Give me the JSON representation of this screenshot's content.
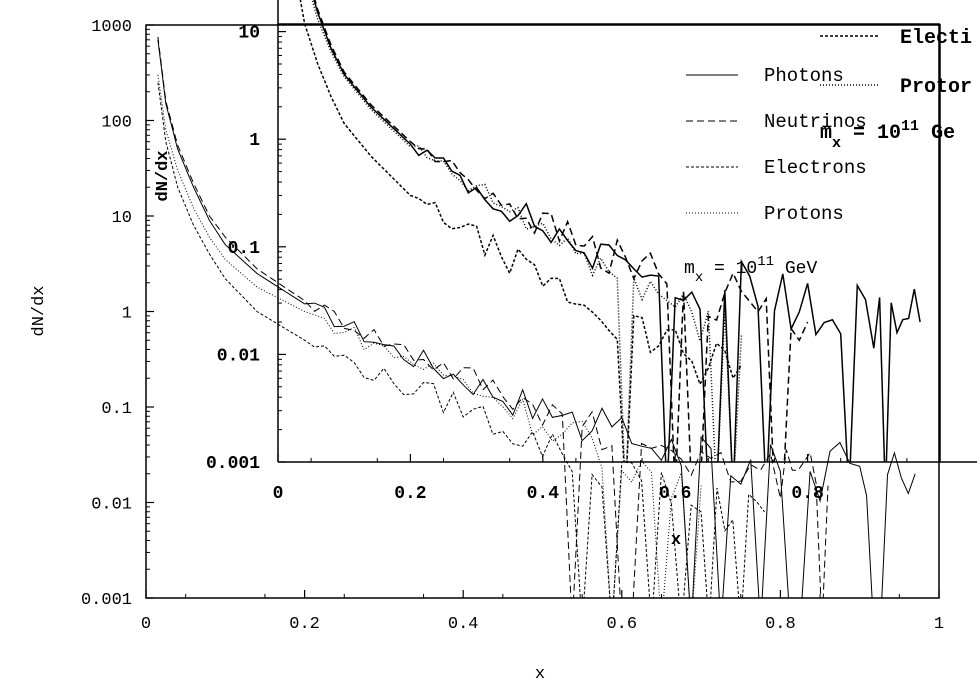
{
  "chart_data": [
    {
      "type": "line",
      "title": "",
      "xlabel": "x",
      "ylabel": "dN/dx",
      "xlim": [
        0,
        1
      ],
      "ylim": [
        0.001,
        1000
      ],
      "yscale": "log",
      "x_ticks": [
        "0",
        "0.2",
        "0.4",
        "0.6",
        "0.8",
        "1"
      ],
      "y_ticks": [
        "0.001",
        "0.01",
        "0.1",
        "1",
        "10",
        "100",
        "1000"
      ],
      "legend_position": "top-right",
      "series": [
        {
          "name": "Photons",
          "style": "solid",
          "x": [
            0.015,
            0.025,
            0.04,
            0.06,
            0.08,
            0.1,
            0.14,
            0.2,
            0.3,
            0.4,
            0.5,
            0.6,
            0.7,
            0.8,
            0.9,
            0.97
          ],
          "y": [
            700,
            150,
            50,
            20,
            9,
            5,
            2.5,
            1.2,
            0.45,
            0.2,
            0.09,
            0.05,
            0.03,
            0.02,
            0.02,
            0.02
          ]
        },
        {
          "name": "Neutrinos",
          "style": "dashed",
          "x": [
            0.015,
            0.025,
            0.04,
            0.06,
            0.08,
            0.1,
            0.14,
            0.2,
            0.3,
            0.4,
            0.5,
            0.6,
            0.7,
            0.8,
            0.86
          ],
          "y": [
            750,
            160,
            55,
            22,
            10,
            6,
            2.8,
            1.3,
            0.5,
            0.22,
            0.1,
            0.05,
            0.03,
            0.02,
            0.015
          ]
        },
        {
          "name": "Electrons",
          "style": "dense-dotted",
          "x": [
            0.015,
            0.025,
            0.04,
            0.06,
            0.08,
            0.1,
            0.14,
            0.2,
            0.3,
            0.4,
            0.5,
            0.6,
            0.7,
            0.78
          ],
          "y": [
            250,
            60,
            20,
            8,
            4,
            2.2,
            1.0,
            0.5,
            0.2,
            0.1,
            0.04,
            0.02,
            0.01,
            0.008
          ]
        },
        {
          "name": "Protons",
          "style": "sparse-dotted",
          "x": [
            0.015,
            0.025,
            0.04,
            0.06,
            0.08,
            0.1,
            0.14,
            0.2,
            0.3,
            0.4,
            0.5,
            0.6,
            0.7
          ],
          "y": [
            300,
            80,
            30,
            12,
            6,
            3.5,
            1.8,
            1.0,
            0.4,
            0.18,
            0.07,
            0.03,
            0.015
          ]
        }
      ]
    },
    {
      "type": "line",
      "title": "",
      "xlabel": "x",
      "ylabel": "dN/dx",
      "xlim": [
        0,
        1
      ],
      "ylim": [
        0.001,
        100
      ],
      "yscale": "log",
      "x_ticks": [
        "0",
        "0.2",
        "0.4",
        "0.6",
        "0.8"
      ],
      "y_ticks": [
        "0.001",
        "0.01",
        "0.1",
        "1",
        "10"
      ],
      "legend_position": "top-right",
      "legend_visible": [
        "Electi",
        "Protor"
      ],
      "annotation": "m_x = 10^11 Ge",
      "series": [
        {
          "name": "",
          "style": "solid",
          "x": [
            0.015,
            0.025,
            0.04,
            0.06,
            0.08,
            0.1,
            0.14,
            0.2,
            0.3,
            0.4,
            0.5,
            0.6,
            0.7,
            0.8,
            0.9,
            0.97
          ],
          "y": [
            400,
            120,
            40,
            15,
            7,
            4,
            2,
            0.9,
            0.35,
            0.15,
            0.07,
            0.05,
            0.04,
            0.03,
            0.02,
            0.02
          ]
        },
        {
          "name": "",
          "style": "dashed",
          "x": [
            0.015,
            0.025,
            0.04,
            0.06,
            0.08,
            0.1,
            0.14,
            0.2,
            0.3,
            0.4,
            0.5,
            0.6,
            0.7,
            0.8
          ],
          "y": [
            420,
            125,
            42,
            16,
            7.5,
            4.2,
            2.1,
            0.95,
            0.38,
            0.16,
            0.08,
            0.05,
            0.03,
            0.02
          ]
        },
        {
          "name": "Electi",
          "style": "dense-dotted",
          "x": [
            0.015,
            0.025,
            0.04,
            0.06,
            0.08,
            0.1,
            0.14,
            0.2,
            0.3,
            0.4,
            0.5,
            0.6,
            0.7
          ],
          "y": [
            150,
            40,
            12,
            5,
            2.5,
            1.4,
            0.7,
            0.3,
            0.12,
            0.05,
            0.02,
            0.01,
            0.008
          ]
        },
        {
          "name": "Protor",
          "style": "sparse-dotted",
          "x": [
            0.015,
            0.025,
            0.04,
            0.06,
            0.08,
            0.1,
            0.14,
            0.2,
            0.3,
            0.4,
            0.5,
            0.6,
            0.7
          ],
          "y": [
            350,
            100,
            35,
            13,
            6.5,
            3.8,
            1.9,
            0.85,
            0.33,
            0.14,
            0.06,
            0.03,
            0.015
          ]
        }
      ]
    }
  ],
  "outer_annotation": {
    "prefix": "m",
    "sub": "x",
    "mid": " = 10",
    "sup": "11",
    "suffix": " GeV"
  },
  "inset_annotation": {
    "prefix": "m",
    "sub": "x",
    "mid": " = 10",
    "sup": "11",
    "suffix": " Ge"
  }
}
